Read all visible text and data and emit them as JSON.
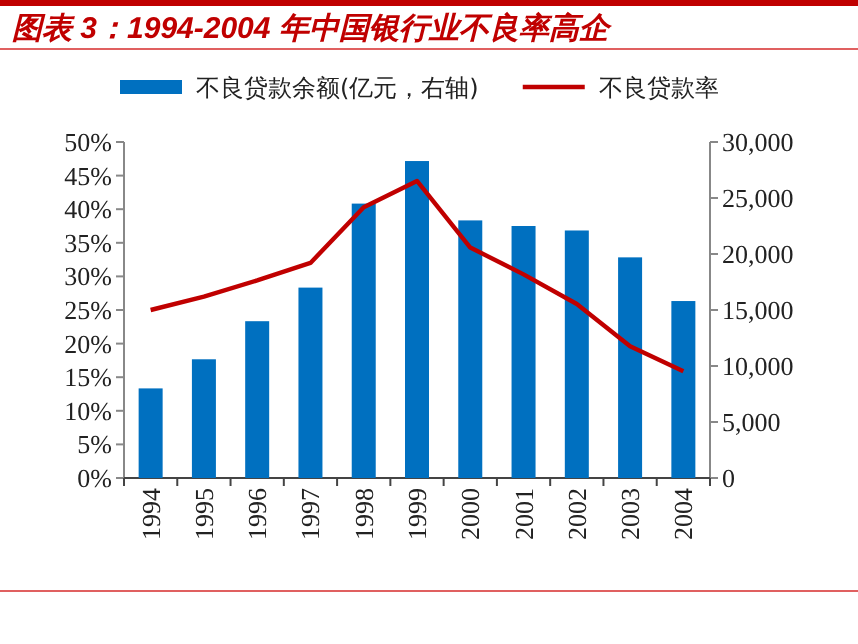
{
  "chart_data": {
    "type": "bar",
    "title": "图表 3：1994-2004 年中国银行业不良率高企",
    "categories": [
      "1994",
      "1995",
      "1996",
      "1997",
      "1998",
      "1999",
      "2000",
      "2001",
      "2002",
      "2003",
      "2004"
    ],
    "series": [
      {
        "name": "不良贷款余额(亿元，右轴)",
        "axis": "y2",
        "color": "#0070c0",
        "values": [
          8000,
          10600,
          14000,
          17000,
          24500,
          28300,
          23000,
          22500,
          22100,
          19700,
          15800
        ]
      },
      {
        "name": "不良贷款率",
        "type": "line",
        "color": "#c00000",
        "values": [
          25,
          27,
          29.4,
          32,
          40.3,
          44.2,
          34.3,
          30.3,
          25.9,
          19.6,
          15.9
        ]
      }
    ],
    "ylim": [
      0,
      50
    ],
    "yticks": [
      {
        "value": 0,
        "label": "0%"
      },
      {
        "value": 5,
        "label": "5%"
      },
      {
        "value": 10,
        "label": "10%"
      },
      {
        "value": 15,
        "label": "15%"
      },
      {
        "value": 20,
        "label": "20%"
      },
      {
        "value": 25,
        "label": "25%"
      },
      {
        "value": 30,
        "label": "30%"
      },
      {
        "value": 35,
        "label": "35%"
      },
      {
        "value": 40,
        "label": "40%"
      },
      {
        "value": 45,
        "label": "45%"
      },
      {
        "value": 50,
        "label": "50%"
      }
    ],
    "y2lim": [
      0,
      30000
    ],
    "y2ticks": [
      {
        "value": 0,
        "label": "0"
      },
      {
        "value": 5000,
        "label": "5,000"
      },
      {
        "value": 10000,
        "label": "10,000"
      },
      {
        "value": 15000,
        "label": "15,000"
      },
      {
        "value": 20000,
        "label": "20,000"
      },
      {
        "value": 25000,
        "label": "25,000"
      },
      {
        "value": 30000,
        "label": "30,000"
      }
    ],
    "legend": "top",
    "grid": false
  }
}
